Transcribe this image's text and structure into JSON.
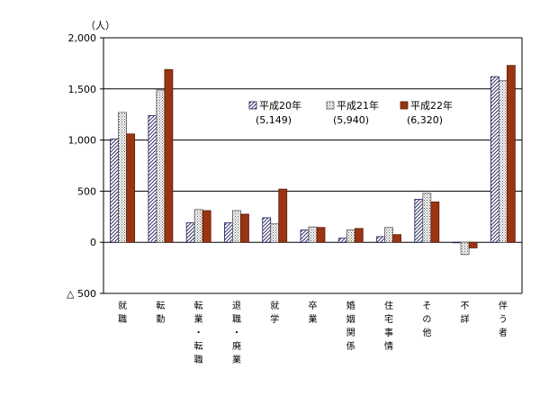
{
  "chart_data": {
    "type": "bar",
    "unit_label": "（人）",
    "negative_sign": "△",
    "ylim": [
      -500,
      2000
    ],
    "yticks": [
      2000,
      1500,
      1000,
      500,
      0,
      -500
    ],
    "ytick_labels": [
      "2,000",
      "1,500",
      "1,000",
      "500",
      "0",
      "△ 500"
    ],
    "grid": true,
    "legend_position": "top-center",
    "categories": [
      "就職",
      "転勤",
      "転業・転職",
      "退職・廃業",
      "就学",
      "卒業",
      "婚姻関係",
      "住宅事情",
      "その他",
      "不詳",
      "伴う者"
    ],
    "series": [
      {
        "name": "平成20年",
        "total_label": "(5,149)",
        "pattern": "diagonal-hatch",
        "color": "#1c1c5c",
        "values": [
          1010,
          1240,
          190,
          190,
          240,
          120,
          40,
          55,
          420,
          -5,
          1620
        ]
      },
      {
        "name": "平成21年",
        "total_label": "(5,940)",
        "pattern": "dotted",
        "color": "#555555",
        "values": [
          1270,
          1490,
          320,
          310,
          180,
          150,
          120,
          145,
          480,
          -120,
          1580
        ]
      },
      {
        "name": "平成22年",
        "total_label": "(6,320)",
        "pattern": "solid",
        "color": "#9a3412",
        "values": [
          1060,
          1690,
          310,
          275,
          520,
          145,
          135,
          75,
          395,
          -55,
          1730
        ]
      }
    ]
  }
}
